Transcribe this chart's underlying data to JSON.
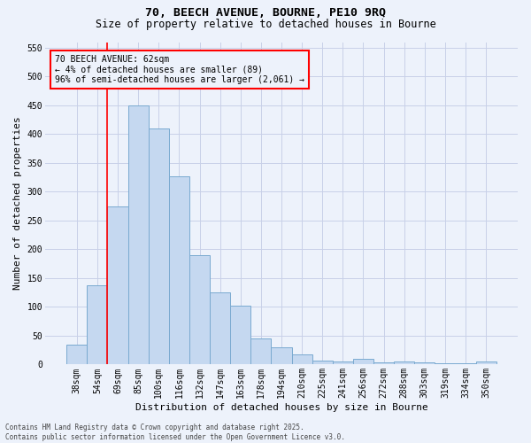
{
  "title_line1": "70, BEECH AVENUE, BOURNE, PE10 9RQ",
  "title_line2": "Size of property relative to detached houses in Bourne",
  "xlabel": "Distribution of detached houses by size in Bourne",
  "ylabel": "Number of detached properties",
  "categories": [
    "38sqm",
    "54sqm",
    "69sqm",
    "85sqm",
    "100sqm",
    "116sqm",
    "132sqm",
    "147sqm",
    "163sqm",
    "178sqm",
    "194sqm",
    "210sqm",
    "225sqm",
    "241sqm",
    "256sqm",
    "272sqm",
    "288sqm",
    "303sqm",
    "319sqm",
    "334sqm",
    "350sqm"
  ],
  "values": [
    35,
    137,
    275,
    450,
    410,
    327,
    190,
    125,
    102,
    46,
    30,
    18,
    7,
    5,
    10,
    3,
    5,
    4,
    2,
    2,
    6
  ],
  "bar_color": "#c5d8f0",
  "bar_edge_color": "#7aaad0",
  "vline_x": 1.5,
  "annotation_text": "70 BEECH AVENUE: 62sqm\n← 4% of detached houses are smaller (89)\n96% of semi-detached houses are larger (2,061) →",
  "ylim": [
    0,
    560
  ],
  "yticks": [
    0,
    50,
    100,
    150,
    200,
    250,
    300,
    350,
    400,
    450,
    500,
    550
  ],
  "footer_line1": "Contains HM Land Registry data © Crown copyright and database right 2025.",
  "footer_line2": "Contains public sector information licensed under the Open Government Licence v3.0.",
  "bg_color": "#edf2fb",
  "grid_color": "#c8d0e8",
  "title_fontsize": 9.5,
  "subtitle_fontsize": 8.5,
  "axis_label_fontsize": 8,
  "tick_fontsize": 7,
  "annot_fontsize": 7,
  "footer_fontsize": 5.5
}
